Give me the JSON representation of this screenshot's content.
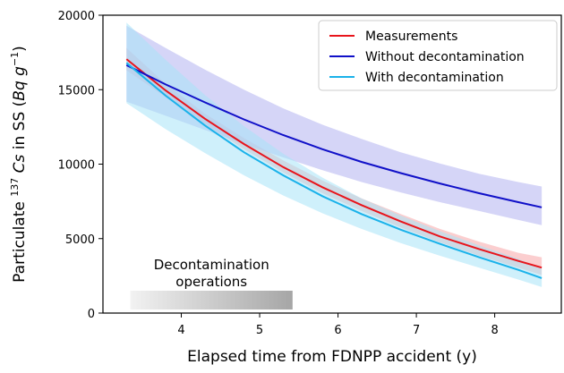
{
  "chart_data": {
    "type": "line",
    "xlabel": "Elapsed time from FDNPP accident (y)",
    "ylabel_prefix": "Particulate",
    "ylabel_sup1": "137",
    "ylabel_cs": "Cs",
    "ylabel_mid": " in SS (",
    "ylabel_unit": "Bq g",
    "ylabel_sup2": "−1",
    "ylabel_end": ")",
    "xlim": [
      3.0,
      8.85
    ],
    "ylim": [
      0,
      20000
    ],
    "xticks": [
      4,
      5,
      6,
      7,
      8
    ],
    "yticks": [
      0,
      5000,
      10000,
      15000,
      20000
    ],
    "grid": false,
    "legend_position": "top-right",
    "x": [
      3.3,
      3.8,
      4.3,
      4.8,
      5.3,
      5.8,
      6.3,
      6.8,
      7.3,
      7.8,
      8.3,
      8.6
    ],
    "series": [
      {
        "name": "Measurements",
        "color": "#e8141b",
        "band_color": "#f7a6a8",
        "values": [
          17050,
          14950,
          13050,
          11350,
          9800,
          8450,
          7250,
          6150,
          5150,
          4300,
          3500,
          3050
        ],
        "lower": [
          16300,
          14500,
          12700,
          11000,
          9450,
          8050,
          6850,
          5750,
          4750,
          3850,
          3050,
          2550
        ],
        "upper": [
          17800,
          15400,
          13400,
          11750,
          10250,
          8900,
          7700,
          6650,
          5650,
          4800,
          4050,
          3750
        ]
      },
      {
        "name": "Without decontamination",
        "color": "#1010c8",
        "band_color": "#b3b3f1",
        "values": [
          16650,
          15350,
          14150,
          13000,
          11950,
          11000,
          10150,
          9400,
          8700,
          8050,
          7450,
          7100
        ],
        "lower": [
          14200,
          13250,
          12300,
          11350,
          10450,
          9600,
          8800,
          8100,
          7450,
          6850,
          6250,
          5900
        ],
        "upper": [
          19300,
          17800,
          16350,
          15000,
          13750,
          12650,
          11700,
          10800,
          10050,
          9350,
          8800,
          8500
        ]
      },
      {
        "name": "With decontamination",
        "color": "#1ab2ea",
        "band_color": "#a7e3f7",
        "values": [
          16800,
          14600,
          12600,
          10800,
          9250,
          7850,
          6650,
          5600,
          4650,
          3750,
          2900,
          2350
        ],
        "lower": [
          14100,
          12350,
          10750,
          9250,
          7900,
          6700,
          5650,
          4700,
          3850,
          3050,
          2250,
          1750
        ],
        "upper": [
          19500,
          17000,
          14650,
          12550,
          10700,
          9100,
          7700,
          6550,
          5500,
          4550,
          3650,
          3000
        ]
      }
    ],
    "annotation": {
      "line1": "Decontamination",
      "line2": "operations",
      "x_start": 3.35,
      "x_end": 5.42
    }
  }
}
